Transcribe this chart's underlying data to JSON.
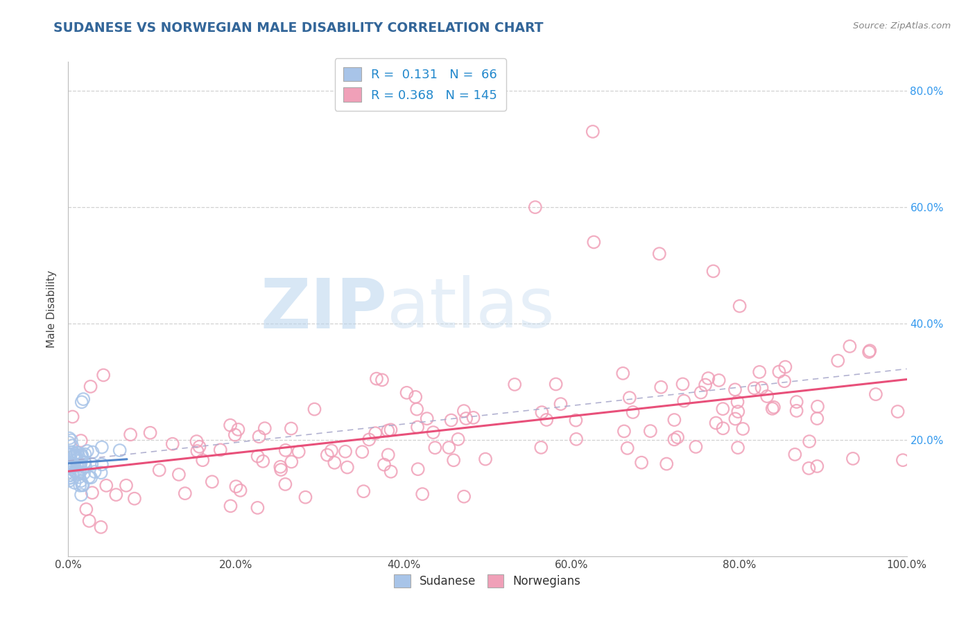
{
  "title": "SUDANESE VS NORWEGIAN MALE DISABILITY CORRELATION CHART",
  "source_text": "Source: ZipAtlas.com",
  "ylabel": "Male Disability",
  "xlim": [
    0,
    1.0
  ],
  "ylim": [
    0,
    0.85
  ],
  "x_ticks": [
    0.0,
    0.2,
    0.4,
    0.6,
    0.8,
    1.0
  ],
  "x_tick_labels": [
    "0.0%",
    "20.0%",
    "40.0%",
    "60.0%",
    "80.0%",
    "100.0%"
  ],
  "y_tick_labels": [
    "20.0%",
    "40.0%",
    "60.0%",
    "80.0%"
  ],
  "y_ticks": [
    0.2,
    0.4,
    0.6,
    0.8
  ],
  "legend_R_sudanese": "0.131",
  "legend_N_sudanese": "66",
  "legend_R_norwegians": "0.368",
  "legend_N_norwegians": "145",
  "sudanese_color": "#a8c4e8",
  "norwegians_color": "#f0a0b8",
  "trendline_sudanese_color": "#5588cc",
  "trendline_norwegians_color": "#e8507a",
  "background_color": "#ffffff",
  "grid_color": "#cccccc",
  "title_color": "#336699"
}
